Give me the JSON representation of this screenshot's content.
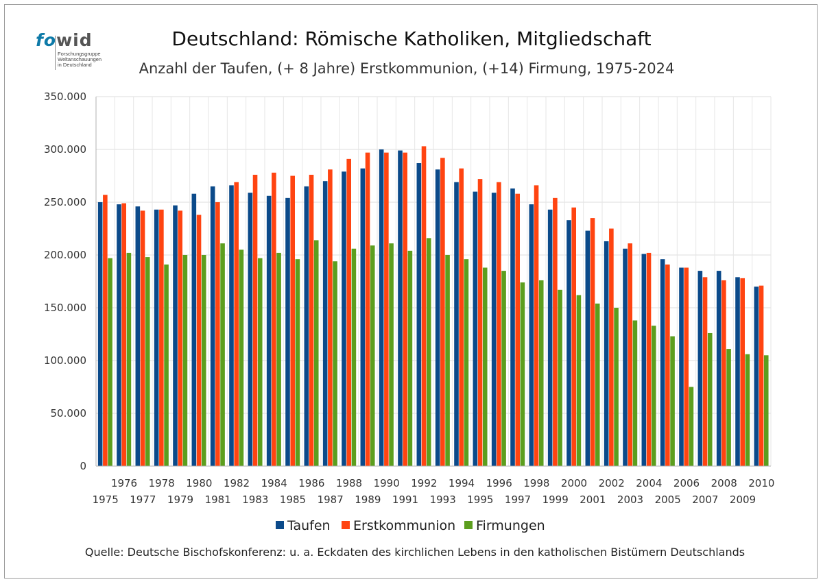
{
  "logo": {
    "word_fo": "fo",
    "word_wid": "wid",
    "lines": [
      "Forschungsgruppe",
      "Weltanschauungen",
      "in Deutschland"
    ]
  },
  "source": "Quelle: Deutsche Bischofskonferenz: u. a.  Eckdaten des kirchlichen Lebens in den katholischen Bistümern Deutschlands",
  "chart_data": {
    "type": "bar",
    "title": "Deutschland: Römische Katholiken, Mitgliedschaft",
    "subtitle": "Anzahl der Taufen, (+ 8 Jahre) Erstkommunion, (+14) Firmung, 1975-2024",
    "categories": [
      "1975",
      "1976",
      "1977",
      "1978",
      "1979",
      "1980",
      "1981",
      "1982",
      "1983",
      "1984",
      "1985",
      "1986",
      "1987",
      "1988",
      "1989",
      "1990",
      "1991",
      "1992",
      "1993",
      "1994",
      "1995",
      "1996",
      "1997",
      "1998",
      "1999",
      "2000",
      "2001",
      "2002",
      "2003",
      "2004",
      "2005",
      "2006",
      "2007",
      "2008",
      "2009",
      "2010"
    ],
    "series": [
      {
        "name": "Taufen",
        "color": "#0b4a8a",
        "values": [
          250000,
          248000,
          246000,
          243000,
          247000,
          258000,
          265000,
          266000,
          259000,
          256000,
          254000,
          265000,
          270000,
          279000,
          282000,
          300000,
          299000,
          287000,
          281000,
          269000,
          260000,
          259000,
          263000,
          248000,
          243000,
          233000,
          223000,
          213000,
          206000,
          201000,
          196000,
          188000,
          185000,
          185000,
          179000,
          170000
        ]
      },
      {
        "name": "Erstkommunion",
        "color": "#ff4411",
        "values": [
          257000,
          249000,
          242000,
          243000,
          242000,
          238000,
          250000,
          269000,
          276000,
          278000,
          275000,
          276000,
          281000,
          291000,
          297000,
          297000,
          297000,
          303000,
          292000,
          282000,
          272000,
          269000,
          258000,
          266000,
          254000,
          245000,
          235000,
          225000,
          211000,
          202000,
          191000,
          188000,
          179000,
          176000,
          178000,
          171000
        ]
      },
      {
        "name": "Firmungen",
        "color": "#5c9e1e",
        "values": [
          197000,
          202000,
          198000,
          191000,
          200000,
          200000,
          211000,
          205000,
          197000,
          202000,
          196000,
          214000,
          194000,
          206000,
          209000,
          211000,
          204000,
          216000,
          200000,
          196000,
          188000,
          185000,
          174000,
          176000,
          167000,
          162000,
          154000,
          150000,
          138000,
          133000,
          123000,
          75000,
          126000,
          111000,
          106000,
          105000
        ]
      }
    ],
    "ylim": [
      0,
      350000
    ],
    "yticks": [
      0,
      50000,
      100000,
      150000,
      200000,
      250000,
      300000,
      350000
    ],
    "ytick_labels": [
      "0",
      "50.000",
      "100.000",
      "150.000",
      "200.000",
      "250.000",
      "300.000",
      "350.000"
    ],
    "grid": true,
    "legend_placement": "bottom"
  }
}
